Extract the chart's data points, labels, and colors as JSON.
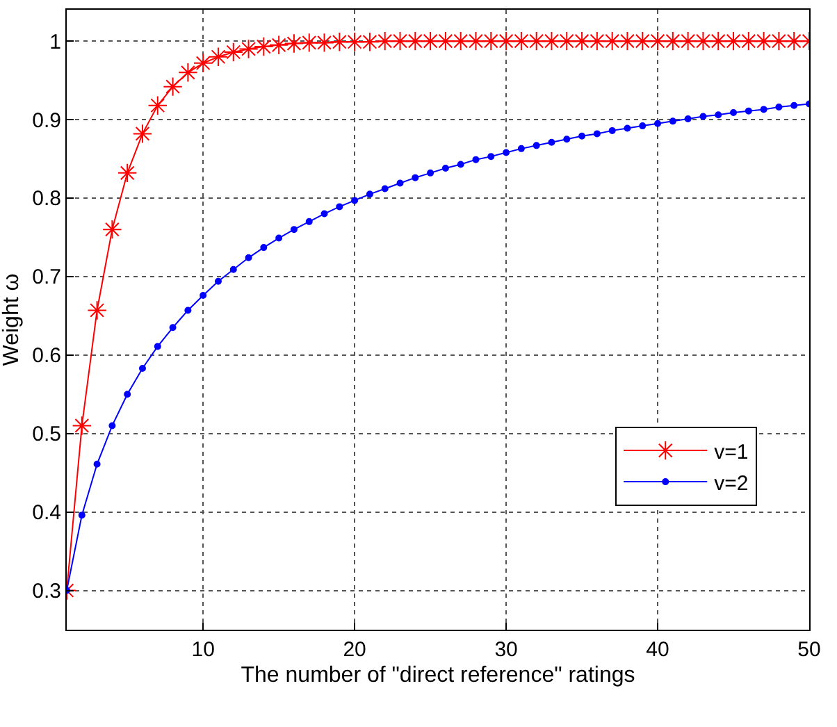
{
  "chart_data": {
    "type": "line",
    "xlabel": "The number of \"direct reference\" ratings",
    "ylabel": "Weight ω",
    "x": [
      1,
      2,
      3,
      4,
      5,
      6,
      7,
      8,
      9,
      10,
      11,
      12,
      13,
      14,
      15,
      16,
      17,
      18,
      19,
      20,
      21,
      22,
      23,
      24,
      25,
      26,
      27,
      28,
      29,
      30,
      31,
      32,
      33,
      34,
      35,
      36,
      37,
      38,
      39,
      40,
      41,
      42,
      43,
      44,
      45,
      46,
      47,
      48,
      49,
      50
    ],
    "series": [
      {
        "name": "v=1",
        "color": "#ff0000",
        "marker": "cross",
        "values": [
          0.3,
          0.51,
          0.657,
          0.76,
          0.832,
          0.882,
          0.918,
          0.942,
          0.96,
          0.972,
          0.98,
          0.986,
          0.99,
          0.993,
          0.995,
          0.997,
          0.998,
          0.998,
          0.999,
          0.999,
          0.999,
          1.0,
          1.0,
          1.0,
          1.0,
          1.0,
          1.0,
          1.0,
          1.0,
          1.0,
          1.0,
          1.0,
          1.0,
          1.0,
          1.0,
          1.0,
          1.0,
          1.0,
          1.0,
          1.0,
          1.0,
          1.0,
          1.0,
          1.0,
          1.0,
          1.0,
          1.0,
          1.0,
          1.0,
          1.0
        ]
      },
      {
        "name": "v=2",
        "color": "#0000ff",
        "marker": "circle",
        "values": [
          0.3,
          0.396,
          0.461,
          0.51,
          0.55,
          0.583,
          0.611,
          0.635,
          0.657,
          0.676,
          0.694,
          0.709,
          0.724,
          0.737,
          0.749,
          0.76,
          0.77,
          0.78,
          0.789,
          0.797,
          0.805,
          0.812,
          0.819,
          0.826,
          0.832,
          0.838,
          0.843,
          0.849,
          0.853,
          0.858,
          0.863,
          0.867,
          0.871,
          0.875,
          0.879,
          0.882,
          0.886,
          0.889,
          0.892,
          0.895,
          0.898,
          0.901,
          0.904,
          0.906,
          0.909,
          0.911,
          0.913,
          0.916,
          0.918,
          0.92
        ]
      }
    ],
    "xlim": [
      1,
      50
    ],
    "xticks": [
      10,
      20,
      30,
      40,
      50
    ],
    "ylim": [
      0.25,
      1.04
    ],
    "yticks": [
      0.3,
      0.4,
      0.5,
      0.6,
      0.7,
      0.8,
      0.9,
      1
    ],
    "grid": true,
    "legend": "bottom right",
    "line_style": "solid"
  }
}
